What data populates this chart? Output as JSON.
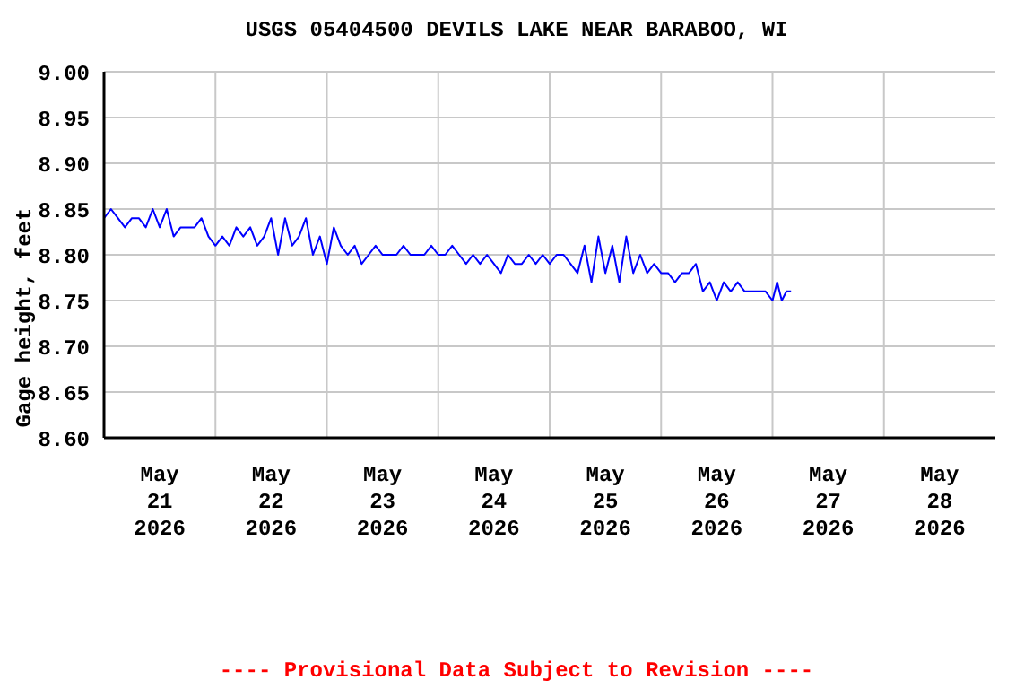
{
  "chart_data": {
    "type": "line",
    "title": "USGS 05404500 DEVILS LAKE NEAR BARABOO, WI",
    "ylabel": "Gage height, feet",
    "annotations": [
      "---- Provisional Data Subject to Revision ----"
    ],
    "x": [
      "2026-05-21T00:00",
      "2026-05-21T01:30",
      "2026-05-21T03:00",
      "2026-05-21T04:30",
      "2026-05-21T06:00",
      "2026-05-21T07:30",
      "2026-05-21T09:00",
      "2026-05-21T10:30",
      "2026-05-21T12:00",
      "2026-05-21T13:30",
      "2026-05-21T15:00",
      "2026-05-21T16:30",
      "2026-05-21T18:00",
      "2026-05-21T19:30",
      "2026-05-21T21:00",
      "2026-05-21T22:30",
      "2026-05-22T00:00",
      "2026-05-22T01:30",
      "2026-05-22T03:00",
      "2026-05-22T04:30",
      "2026-05-22T06:00",
      "2026-05-22T07:30",
      "2026-05-22T09:00",
      "2026-05-22T10:30",
      "2026-05-22T12:00",
      "2026-05-22T13:30",
      "2026-05-22T15:00",
      "2026-05-22T16:30",
      "2026-05-22T18:00",
      "2026-05-22T19:30",
      "2026-05-22T21:00",
      "2026-05-22T22:30",
      "2026-05-23T00:00",
      "2026-05-23T01:30",
      "2026-05-23T03:00",
      "2026-05-23T04:30",
      "2026-05-23T06:00",
      "2026-05-23T07:30",
      "2026-05-23T09:00",
      "2026-05-23T10:30",
      "2026-05-23T12:00",
      "2026-05-23T13:30",
      "2026-05-23T15:00",
      "2026-05-23T16:30",
      "2026-05-23T18:00",
      "2026-05-23T19:30",
      "2026-05-23T21:00",
      "2026-05-23T22:30",
      "2026-05-24T00:00",
      "2026-05-24T01:30",
      "2026-05-24T03:00",
      "2026-05-24T04:30",
      "2026-05-24T06:00",
      "2026-05-24T07:30",
      "2026-05-24T09:00",
      "2026-05-24T10:30",
      "2026-05-24T12:00",
      "2026-05-24T13:30",
      "2026-05-24T15:00",
      "2026-05-24T16:30",
      "2026-05-24T18:00",
      "2026-05-24T19:30",
      "2026-05-24T21:00",
      "2026-05-24T22:30",
      "2026-05-25T00:00",
      "2026-05-25T01:30",
      "2026-05-25T03:00",
      "2026-05-25T04:30",
      "2026-05-25T06:00",
      "2026-05-25T07:30",
      "2026-05-25T09:00",
      "2026-05-25T10:30",
      "2026-05-25T12:00",
      "2026-05-25T13:30",
      "2026-05-25T15:00",
      "2026-05-25T16:30",
      "2026-05-25T18:00",
      "2026-05-25T19:30",
      "2026-05-25T21:00",
      "2026-05-25T22:30",
      "2026-05-26T00:00",
      "2026-05-26T01:30",
      "2026-05-26T03:00",
      "2026-05-26T04:30",
      "2026-05-26T06:00",
      "2026-05-26T07:30",
      "2026-05-26T09:00",
      "2026-05-26T10:30",
      "2026-05-26T12:00",
      "2026-05-26T13:30",
      "2026-05-26T15:00",
      "2026-05-26T16:30",
      "2026-05-26T18:00",
      "2026-05-26T19:30",
      "2026-05-26T21:00",
      "2026-05-26T22:30",
      "2026-05-27T00:00",
      "2026-05-27T01:00",
      "2026-05-27T02:00",
      "2026-05-27T03:00",
      "2026-05-27T04:00"
    ],
    "series": [
      {
        "color": "#0000ff",
        "values": [
          8.84,
          8.85,
          8.84,
          8.83,
          8.84,
          8.84,
          8.83,
          8.85,
          8.83,
          8.85,
          8.82,
          8.83,
          8.83,
          8.83,
          8.84,
          8.82,
          8.81,
          8.82,
          8.81,
          8.83,
          8.82,
          8.83,
          8.81,
          8.82,
          8.84,
          8.8,
          8.84,
          8.81,
          8.82,
          8.84,
          8.8,
          8.82,
          8.79,
          8.83,
          8.81,
          8.8,
          8.81,
          8.79,
          8.8,
          8.81,
          8.8,
          8.8,
          8.8,
          8.81,
          8.8,
          8.8,
          8.8,
          8.81,
          8.8,
          8.8,
          8.81,
          8.8,
          8.79,
          8.8,
          8.79,
          8.8,
          8.79,
          8.78,
          8.8,
          8.79,
          8.79,
          8.8,
          8.79,
          8.8,
          8.79,
          8.8,
          8.8,
          8.79,
          8.78,
          8.81,
          8.77,
          8.82,
          8.78,
          8.81,
          8.77,
          8.82,
          8.78,
          8.8,
          8.78,
          8.79,
          8.78,
          8.78,
          8.77,
          8.78,
          8.78,
          8.79,
          8.76,
          8.77,
          8.75,
          8.77,
          8.76,
          8.77,
          8.76,
          8.76,
          8.76,
          8.76,
          8.75,
          8.77,
          8.75,
          8.76,
          8.76
        ]
      }
    ],
    "xlim": [
      "2026-05-21T00:00",
      "2026-05-29T00:00"
    ],
    "xticks": [
      {
        "value": "2026-05-21T12:00",
        "label": "May\n21\n2026"
      },
      {
        "value": "2026-05-22T00:00",
        "label": null
      },
      {
        "value": "2026-05-22T12:00",
        "label": "May\n22\n2026"
      },
      {
        "value": "2026-05-23T00:00",
        "label": null
      },
      {
        "value": "2026-05-23T12:00",
        "label": "May\n23\n2026"
      },
      {
        "value": "2026-05-24T00:00",
        "label": null
      },
      {
        "value": "2026-05-24T12:00",
        "label": "May\n24\n2026"
      },
      {
        "value": "2026-05-25T00:00",
        "label": null
      },
      {
        "value": "2026-05-25T12:00",
        "label": "May\n25\n2026"
      },
      {
        "value": "2026-05-26T00:00",
        "label": null
      },
      {
        "value": "2026-05-26T12:00",
        "label": "May\n26\n2026"
      },
      {
        "value": "2026-05-27T00:00",
        "label": null
      },
      {
        "value": "2026-05-27T12:00",
        "label": "May\n27\n2026"
      },
      {
        "value": "2026-05-28T00:00",
        "label": null
      },
      {
        "value": "2026-05-28T12:00",
        "label": "May\n28\n2026"
      }
    ],
    "ylim": [
      8.6,
      9.0
    ],
    "yticks": [
      {
        "value": 8.6,
        "label": "8.60"
      },
      {
        "value": 8.65,
        "label": "8.65"
      },
      {
        "value": 8.7,
        "label": "8.70"
      },
      {
        "value": 8.75,
        "label": "8.75"
      },
      {
        "value": 8.8,
        "label": "8.80"
      },
      {
        "value": 8.85,
        "label": "8.85"
      },
      {
        "value": 8.9,
        "label": "8.90"
      },
      {
        "value": 8.95,
        "label": "8.95"
      },
      {
        "value": 9.0,
        "label": "9.00"
      }
    ],
    "grid": true,
    "legend": false,
    "marker": "none",
    "line_style": "solid"
  }
}
